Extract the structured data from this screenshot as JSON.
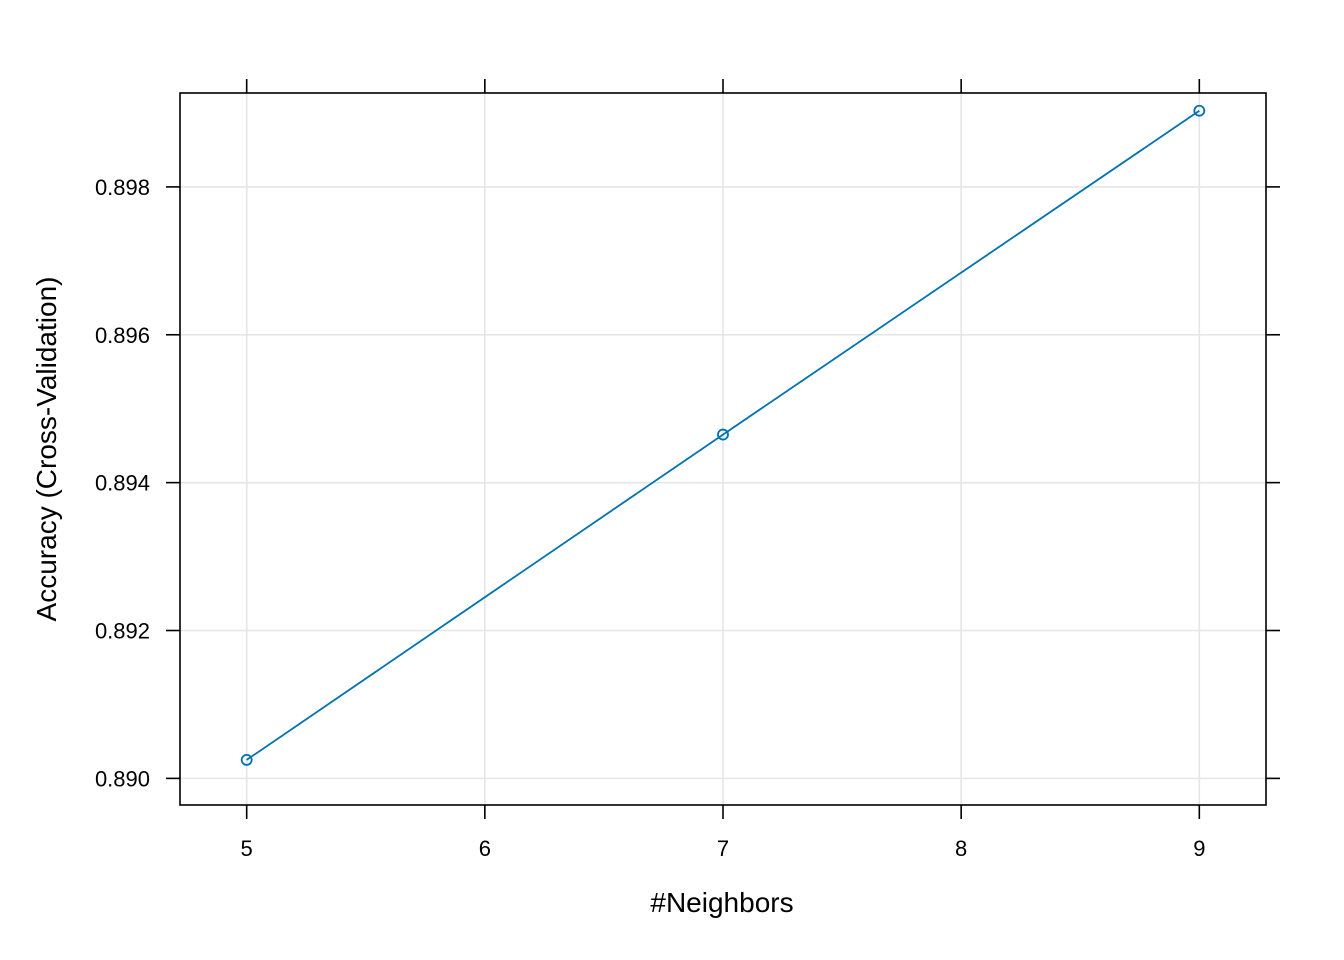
{
  "chart_data": {
    "type": "line",
    "title": "",
    "xlabel": "#Neighbors",
    "ylabel": "Accuracy (Cross-Validation)",
    "x": [
      5,
      7,
      9
    ],
    "series": [
      {
        "values": [
          0.89025,
          0.89465,
          0.89903
        ]
      }
    ],
    "xlim": [
      4.72,
      9.28
    ],
    "ylim": [
      0.88964,
      0.89927
    ],
    "x_ticks": [
      5,
      6,
      7,
      8,
      9
    ],
    "x_tick_labels": [
      "5",
      "6",
      "7",
      "8",
      "9"
    ],
    "y_ticks": [
      0.89,
      0.892,
      0.894,
      0.896,
      0.898
    ],
    "y_tick_labels": [
      "0.890",
      "0.892",
      "0.894",
      "0.896",
      "0.898"
    ],
    "grid": true,
    "marker": "open-circle",
    "colors": {
      "series": "#0072B2",
      "grid": "#E6E6E6",
      "axis": "#000000"
    }
  }
}
